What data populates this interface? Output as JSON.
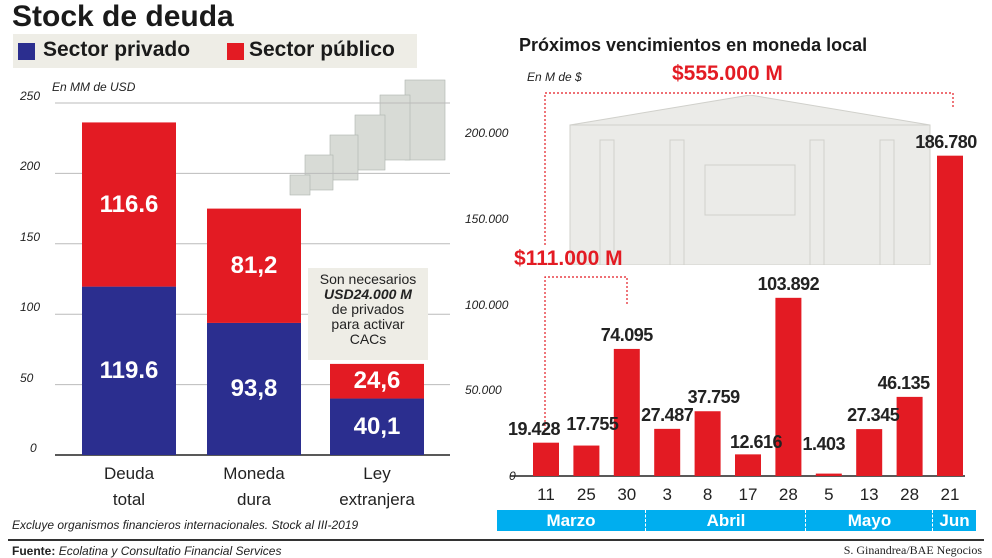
{
  "title": "Stock de deuda",
  "legend": [
    {
      "label": "Sector privado",
      "color": "#2b2e8f"
    },
    {
      "label": "Sector público",
      "color": "#e31b23"
    }
  ],
  "chart_data": [
    {
      "type": "bar",
      "stacked": true,
      "unit": "En MM de USD",
      "categories": [
        "Deuda total",
        "Moneda dura",
        "Ley extranjera"
      ],
      "category_lines": [
        [
          "Deuda",
          "total"
        ],
        [
          "Moneda",
          "dura"
        ],
        [
          "Ley",
          "extranjera"
        ]
      ],
      "series": [
        {
          "name": "Sector privado",
          "values": [
            119.6,
            93.8,
            40.1
          ],
          "labels": [
            "119.6",
            "93,8",
            "40,1"
          ],
          "color": "#2b2e8f"
        },
        {
          "name": "Sector público",
          "values": [
            116.6,
            81.2,
            24.6
          ],
          "labels": [
            "116.6",
            "81,2",
            "24,6"
          ],
          "color": "#e31b23"
        }
      ],
      "ylim": [
        0,
        250
      ],
      "yticks": [
        "0",
        "50",
        "100",
        "150",
        "200",
        "250"
      ],
      "grid": true,
      "annotation": [
        "Son necesarios",
        "USD24.000 M",
        "de privados",
        "para activar",
        "CACs"
      ]
    },
    {
      "type": "bar",
      "title": "Próximos vencimientos en moneda local",
      "unit": "En M de $",
      "categories": [
        "11",
        "25",
        "30",
        "3",
        "8",
        "17",
        "28",
        "5",
        "13",
        "28",
        "21"
      ],
      "values": [
        19428,
        17755,
        74095,
        27487,
        37759,
        12616,
        103892,
        1403,
        27345,
        46135,
        186780
      ],
      "labels": [
        "19.428",
        "17.755",
        "74.095",
        "27.487",
        "37.759",
        "12.616",
        "103.892",
        "1.403",
        "27.345",
        "46.135",
        "186.780"
      ],
      "color": "#e31b23",
      "ylim": [
        0,
        220000
      ],
      "yticks": [
        {
          "v": 0,
          "t": "0"
        },
        {
          "v": 50000,
          "t": "50.000"
        },
        {
          "v": 100000,
          "t": "100.000"
        },
        {
          "v": 150000,
          "t": "150.000"
        },
        {
          "v": 200000,
          "t": "200.000"
        }
      ],
      "months": [
        {
          "label": "Marzo",
          "span": 3
        },
        {
          "label": "Abril",
          "span": 4
        },
        {
          "label": "Mayo",
          "span": 3
        },
        {
          "label": "Jun",
          "span": 1
        }
      ],
      "month_color": "#00aeef",
      "annotations": [
        {
          "label": "$555.000 M"
        },
        {
          "label": "$111.000 M"
        }
      ]
    }
  ],
  "footer": {
    "note": "Excluye organismos financieros internacionales. Stock al III-2019",
    "source_label": "Fuente:",
    "source": "Ecolatina y Consultatio Financial Services",
    "credit": "S. Ginandrea/BAE Negocios"
  }
}
